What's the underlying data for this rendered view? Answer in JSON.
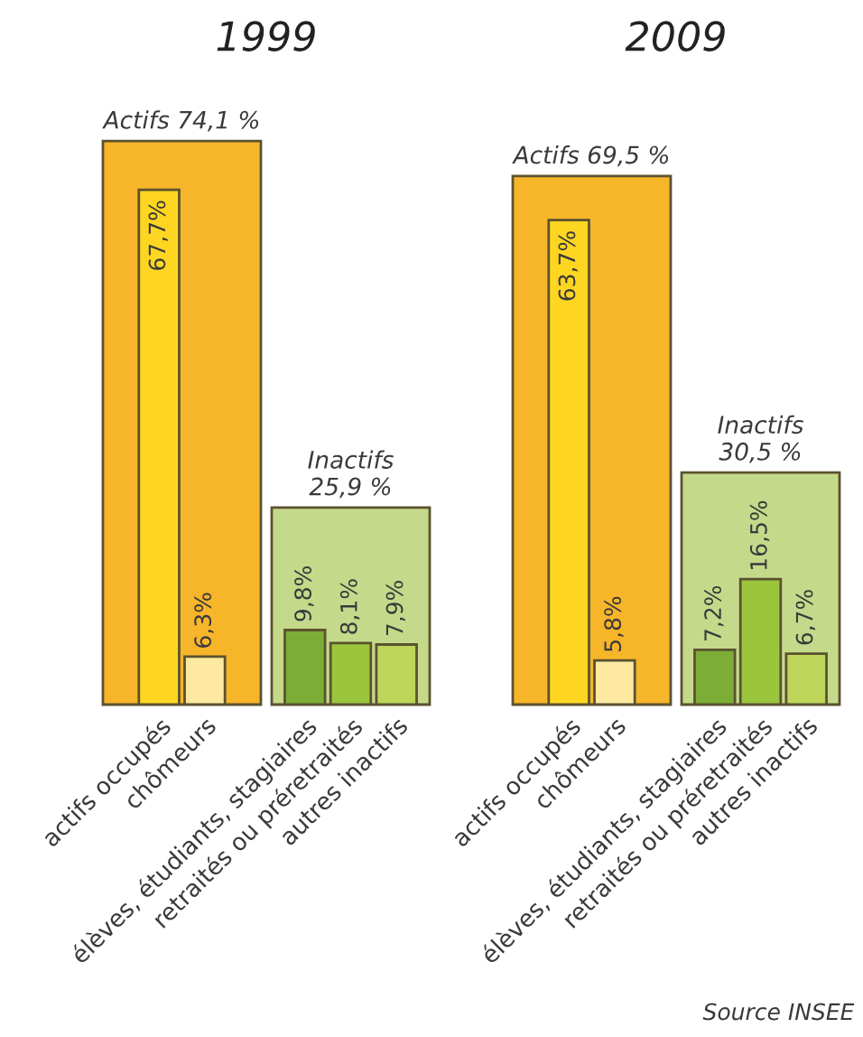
{
  "chart_data": [
    {
      "type": "bar",
      "title": "1999",
      "categories": [
        "actifs occupés",
        "chômeurs"
      ],
      "colors": [
        "#fed621",
        "#fde9a0"
      ],
      "values": [
        67.7,
        6.3
      ],
      "value_labels": [
        "67,7%",
        "6,3%"
      ],
      "bands": [
        {
          "axis": "y",
          "from": 0,
          "to": 74.1,
          "label": "Actifs 74,1 %",
          "color": "#f7b52a"
        }
      ],
      "tick_labels": "x"
    },
    {
      "type": "bar",
      "categories": [
        "élèves, étudiants, stagiaires",
        "retraités ou préretraités",
        "autres inactifs"
      ],
      "colors": [
        "#7cae37",
        "#9bc53d",
        "#bdd65a"
      ],
      "values": [
        9.8,
        8.1,
        7.9
      ],
      "value_labels": [
        "9,8%",
        "8,1%",
        "7,9%"
      ],
      "bands": [
        {
          "axis": "y",
          "from": 0,
          "to": 25.9,
          "label": "Inactifs\n25,9 %",
          "color": "#c4da8a"
        }
      ],
      "tick_labels": "x"
    },
    {
      "type": "bar",
      "title": "2009",
      "categories": [
        "actifs occupés",
        "chômeurs"
      ],
      "colors": [
        "#fed621",
        "#fde9a0"
      ],
      "values": [
        63.7,
        5.8
      ],
      "value_labels": [
        "63,7%",
        "5,8%"
      ],
      "bands": [
        {
          "axis": "y",
          "from": 0,
          "to": 69.5,
          "label": "Actifs 69,5 %",
          "color": "#f7b52a"
        }
      ],
      "tick_labels": "x"
    },
    {
      "type": "bar",
      "categories": [
        "élèves, étudiants, stagiaires",
        "retraités ou préretraités",
        "autres inactifs"
      ],
      "colors": [
        "#7cae37",
        "#9bc53d",
        "#bdd65a"
      ],
      "values": [
        7.2,
        16.5,
        6.7
      ],
      "value_labels": [
        "7,2%",
        "16,5%",
        "6,7%"
      ],
      "bands": [
        {
          "axis": "y",
          "from": 0,
          "to": 30.5,
          "label": "Inactifs\n30,5 %",
          "color": "#c4da8a"
        }
      ],
      "tick_labels": "x",
      "annotations": [
        "Source INSEE"
      ]
    }
  ]
}
